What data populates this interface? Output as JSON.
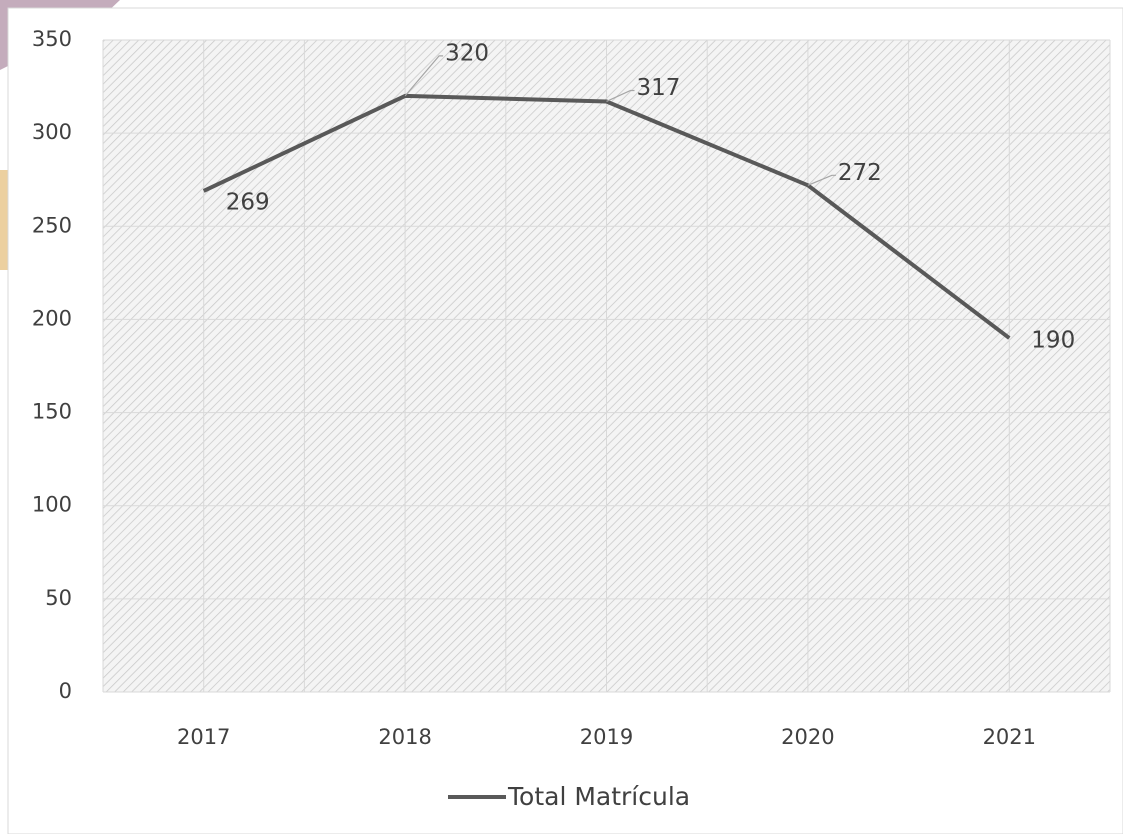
{
  "chart_data": {
    "type": "line",
    "categories": [
      "2017",
      "2018",
      "2019",
      "2020",
      "2021"
    ],
    "series": [
      {
        "name": "Total Matrícula",
        "color": "#595959",
        "values": [
          269,
          320,
          317,
          272,
          190
        ]
      }
    ],
    "ylim": [
      0,
      350
    ],
    "yticks": [
      0,
      50,
      100,
      150,
      200,
      250,
      300,
      350
    ],
    "grid": true,
    "legend": "bottom"
  }
}
